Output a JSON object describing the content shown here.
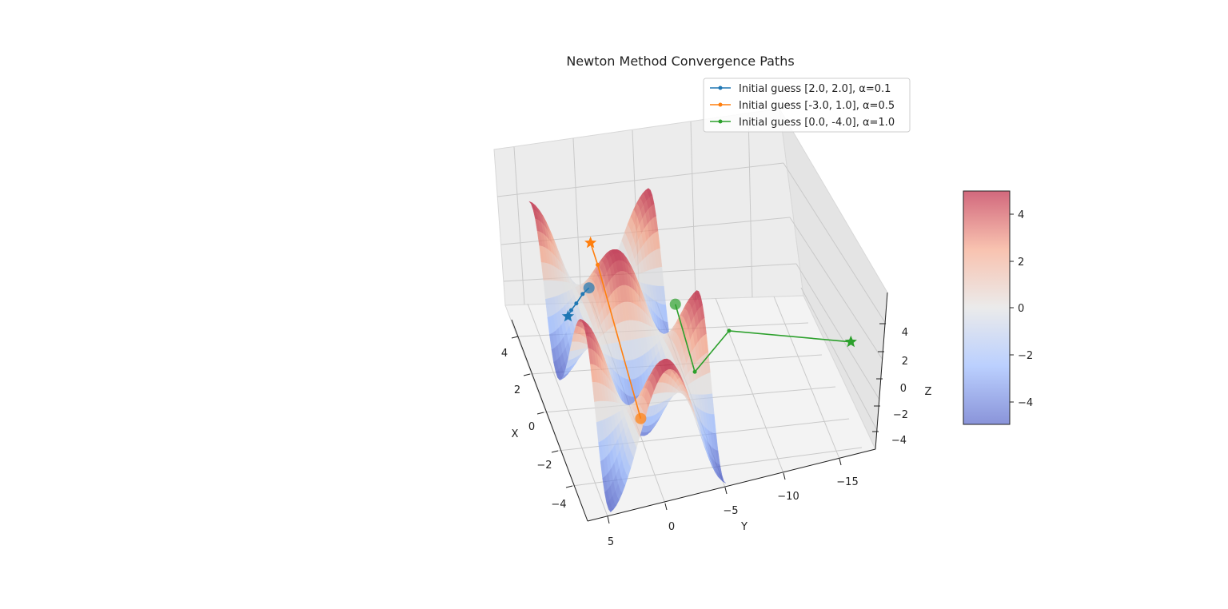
{
  "chart_data": {
    "type": "surface3d",
    "title": "Newton Method Convergence Paths",
    "xlabel": "X",
    "ylabel": "Y",
    "zlabel": "Z",
    "x_ticks": [
      "−4",
      "−2",
      "0",
      "2",
      "4"
    ],
    "y_ticks": [
      "5",
      "0",
      "−5",
      "−10",
      "−15"
    ],
    "z_ticks": [
      "−4",
      "−2",
      "0",
      "2",
      "4"
    ],
    "xlim": [
      -5,
      5
    ],
    "ylim": [
      -18,
      7
    ],
    "zlim": [
      -5,
      5
    ],
    "surface": {
      "function": "z = sin(x) * cos(y)*5 (approx)",
      "colormap": "coolwarm",
      "alpha": 0.6
    },
    "colorbar": {
      "ticks": [
        "4",
        "2",
        "0",
        "−2",
        "−4"
      ],
      "range": [
        -5,
        5
      ]
    },
    "legend_position": "top-right",
    "series": [
      {
        "name": "Initial guess [2.0, 2.0], α=0.1",
        "color": "#1f77b4",
        "path": [
          [
            2.0,
            2.0,
            1.6
          ],
          [
            2.2,
            2.4,
            0.8
          ],
          [
            2.4,
            2.8,
            -0.3
          ],
          [
            2.6,
            3.1,
            -1.2
          ],
          [
            2.7,
            3.3,
            -1.9
          ]
        ]
      },
      {
        "name": "Initial guess [-3.0, 1.0], α=0.5",
        "color": "#ff7f0e",
        "path": [
          [
            -3.0,
            1.0,
            -1.5
          ],
          [
            1.8,
            1.4,
            3.8
          ],
          [
            2.4,
            1.6,
            4.8
          ]
        ]
      },
      {
        "name": "Initial guess [0.0, -4.0], α=1.0",
        "color": "#2ca02c",
        "path": [
          [
            0.0,
            -4.0,
            2.2
          ],
          [
            -1.6,
            -4.6,
            -1.0
          ],
          [
            -1.2,
            -7.8,
            1.0
          ],
          [
            -3.2,
            -17.0,
            0.6
          ]
        ]
      }
    ],
    "legend": [
      "Initial guess [2.0, 2.0], α=0.1",
      "Initial guess [-3.0, 1.0], α=0.5",
      "Initial guess [0.0, -4.0], α=1.0"
    ]
  }
}
